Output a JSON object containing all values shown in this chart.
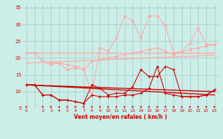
{
  "background_color": "#cceee8",
  "grid_color": "#aacccc",
  "xlabel": "Vent moyen/en rafales ( km/h )",
  "tick_color": "#cc0000",
  "ylim": [
    5,
    36
  ],
  "yticks": [
    5,
    10,
    15,
    20,
    25,
    30,
    35
  ],
  "xlim": [
    -0.5,
    23.5
  ],
  "pink_flat1": [
    21.5,
    21.5,
    21.5,
    21.5,
    21.5,
    21.5,
    21.5,
    21.5,
    21.5,
    21.5,
    21.5,
    21.5,
    21.5,
    21.5,
    21.5,
    21.5,
    21.5,
    21.5,
    21.5,
    21.5,
    21.5,
    21.5,
    21.5,
    21.5
  ],
  "pink_flat2": [
    18.5,
    18.6,
    18.7,
    18.8,
    18.9,
    19.0,
    19.1,
    19.2,
    19.3,
    19.4,
    19.5,
    19.6,
    19.7,
    19.8,
    19.9,
    20.0,
    20.1,
    20.2,
    20.3,
    20.4,
    20.5,
    20.6,
    20.7,
    20.8
  ],
  "pink_line1": [
    21.5,
    21.5,
    19.0,
    18.5,
    18.5,
    16.5,
    17.0,
    16.5,
    19.0,
    19.5,
    20.0,
    20.5,
    21.0,
    21.5,
    22.0,
    22.5,
    23.0,
    22.0,
    21.0,
    22.0,
    22.5,
    23.0,
    23.5,
    24.0
  ],
  "pink_line2": [
    21.5,
    21.5,
    19.0,
    18.0,
    18.5,
    18.0,
    17.5,
    17.0,
    9.0,
    23.0,
    22.0,
    26.0,
    32.5,
    31.0,
    26.0,
    32.5,
    32.5,
    29.5,
    21.5,
    22.0,
    24.5,
    29.0,
    24.0,
    24.0
  ],
  "red_trend1": [
    12.0,
    11.87,
    11.74,
    11.61,
    11.48,
    11.35,
    11.22,
    11.09,
    10.96,
    10.83,
    10.7,
    10.57,
    10.44,
    10.31,
    10.18,
    10.05,
    9.92,
    9.79,
    9.66,
    9.53,
    9.4,
    9.27,
    9.14,
    9.0
  ],
  "red_trend2": [
    12.0,
    11.91,
    11.83,
    11.74,
    11.65,
    11.57,
    11.48,
    11.39,
    11.3,
    11.22,
    11.13,
    11.04,
    10.96,
    10.87,
    10.78,
    10.7,
    10.61,
    10.52,
    10.43,
    10.35,
    10.26,
    10.17,
    10.09,
    10.0
  ],
  "red_line1": [
    12.0,
    12.0,
    9.0,
    9.0,
    7.5,
    7.5,
    7.0,
    6.5,
    9.0,
    8.5,
    8.5,
    8.5,
    9.0,
    9.0,
    9.5,
    11.0,
    17.5,
    9.5,
    9.0,
    8.5,
    8.5,
    8.5,
    9.0,
    10.5
  ],
  "red_line2": [
    12.0,
    12.0,
    9.0,
    9.0,
    7.5,
    7.5,
    7.0,
    6.5,
    12.0,
    11.0,
    9.0,
    9.5,
    9.5,
    11.5,
    16.5,
    14.5,
    14.5,
    17.5,
    16.5,
    8.5,
    8.5,
    8.5,
    9.0,
    10.5
  ],
  "light_pink": "#ffaaaa",
  "med_pink": "#ff8888",
  "dark_red": "#cc0000"
}
